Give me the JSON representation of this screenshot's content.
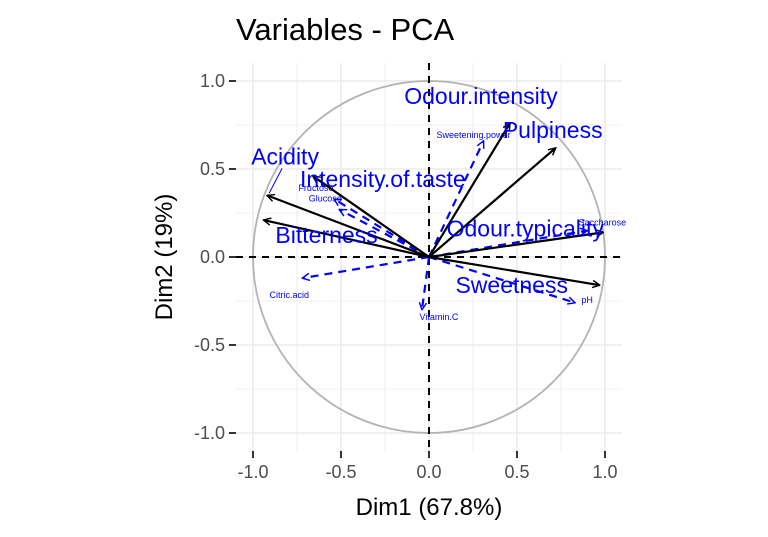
{
  "chart_data": {
    "type": "scatter",
    "title": "Variables - PCA",
    "xlabel": "Dim1 (67.8%)",
    "ylabel": "Dim2 (19%)",
    "xlim": [
      -1.1,
      1.1
    ],
    "ylim": [
      -1.1,
      1.1
    ],
    "xticks": [
      -1.0,
      -0.5,
      0.0,
      0.5,
      1.0
    ],
    "yticks": [
      -1.0,
      -0.5,
      0.0,
      0.5,
      1.0
    ],
    "xtick_labels": [
      "-1.0",
      "-0.5",
      "0.0",
      "0.5",
      "1.0"
    ],
    "ytick_labels": [
      "-1.0",
      "-0.5",
      "0.0",
      "0.5",
      "1.0"
    ],
    "grid": true,
    "correlation_circle": true,
    "active_variables": [
      {
        "name": "Odour.intensity",
        "x": 0.46,
        "y": 0.76
      },
      {
        "name": "Pulpiness",
        "x": 0.72,
        "y": 0.62
      },
      {
        "name": "Acidity",
        "x": -0.92,
        "y": 0.35
      },
      {
        "name": "Intensity.of.taste",
        "x": -0.66,
        "y": 0.46
      },
      {
        "name": "Bitterness",
        "x": -0.94,
        "y": 0.21
      },
      {
        "name": "Odour.typicality",
        "x": 0.99,
        "y": 0.14
      },
      {
        "name": "Sweetness",
        "x": 0.97,
        "y": -0.16
      }
    ],
    "supplementary_variables": [
      {
        "name": "Sweetening.power",
        "x": 0.31,
        "y": 0.66
      },
      {
        "name": "Fructose",
        "x": -0.54,
        "y": 0.33
      },
      {
        "name": "Glucose",
        "x": -0.51,
        "y": 0.27
      },
      {
        "name": "Saccharose",
        "x": 0.9,
        "y": 0.15
      },
      {
        "name": "Citric.acid",
        "x": -0.72,
        "y": -0.12
      },
      {
        "name": "Vitamin.C",
        "x": -0.04,
        "y": -0.3
      },
      {
        "name": "pH",
        "x": 0.83,
        "y": -0.26
      }
    ],
    "colors": {
      "active_arrow": "#000000",
      "active_label": "#0000ff",
      "supp": "#0000ff",
      "circle": "#b3b3b3",
      "grid": "#ebebeb",
      "reference": "#000000"
    }
  }
}
